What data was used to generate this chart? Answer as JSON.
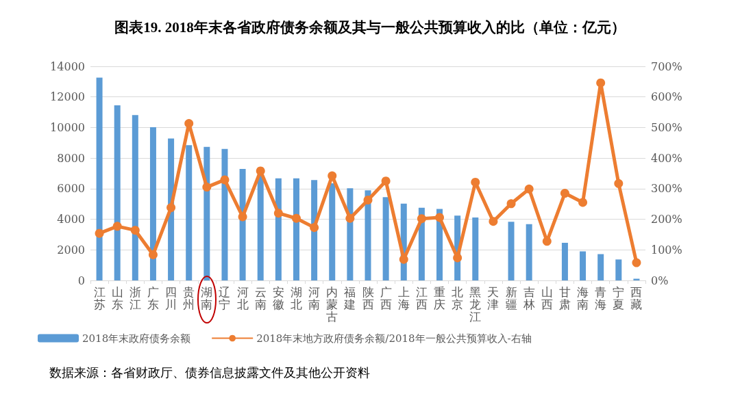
{
  "chart_data": {
    "type": "bar",
    "title": "图表19.  2018年末各省政府债务余额及其与一般公共预算收入的比（单位：亿元）",
    "categories": [
      "江苏",
      "山东",
      "浙江",
      "广东",
      "四川",
      "贵州",
      "湖南",
      "辽宁",
      "河北",
      "云南",
      "安徽",
      "湖北",
      "河南",
      "内蒙古",
      "福建",
      "陕西",
      "广西",
      "上海",
      "江西",
      "重庆",
      "北京",
      "黑龙江",
      "天津",
      "新疆",
      "吉林",
      "山西",
      "甘肃",
      "海南",
      "青海",
      "宁夏",
      "西藏"
    ],
    "series": [
      {
        "name": "2018年末政府债务余额",
        "color": "#5b9bd5",
        "values": [
          13260,
          11450,
          10810,
          10020,
          9280,
          8850,
          8730,
          8600,
          7290,
          6950,
          6680,
          6680,
          6560,
          6350,
          6030,
          5890,
          5450,
          5020,
          4750,
          4670,
          4240,
          4110,
          null,
          3840,
          3680,
          null,
          2460,
          1900,
          1720,
          1370,
          110
        ]
      },
      {
        "name": "2018年末地方政府债务余额/2018年一般公共预算收入-右轴",
        "type": "line",
        "axis": "y2",
        "color": "#ed7d31",
        "marker": "circle",
        "values": [
          154,
          177,
          164,
          84,
          238,
          513,
          305,
          329,
          208,
          358,
          220,
          203,
          173,
          342,
          203,
          263,
          325,
          69,
          202,
          206,
          74,
          321,
          193,
          251,
          299,
          128,
          285,
          255,
          646,
          317,
          58
        ]
      }
    ],
    "ylim": [
      0,
      14000
    ],
    "yticks": [
      0,
      2000,
      4000,
      6000,
      8000,
      10000,
      12000,
      14000
    ],
    "y2lim": [
      0,
      700
    ],
    "y2ticks": [
      {
        "value": 0,
        "label": "0%"
      },
      {
        "value": 100,
        "label": "100%"
      },
      {
        "value": 200,
        "label": "200%"
      },
      {
        "value": 300,
        "label": "300%"
      },
      {
        "value": 400,
        "label": "400%"
      },
      {
        "value": 500,
        "label": "500%"
      },
      {
        "value": 600,
        "label": "600%"
      },
      {
        "value": 700,
        "label": "700%"
      }
    ],
    "grid": "y",
    "legend": "bottom",
    "annotations": [
      "数据来源：各省财政厅、债券信息披露文件及其他公开资料"
    ]
  }
}
